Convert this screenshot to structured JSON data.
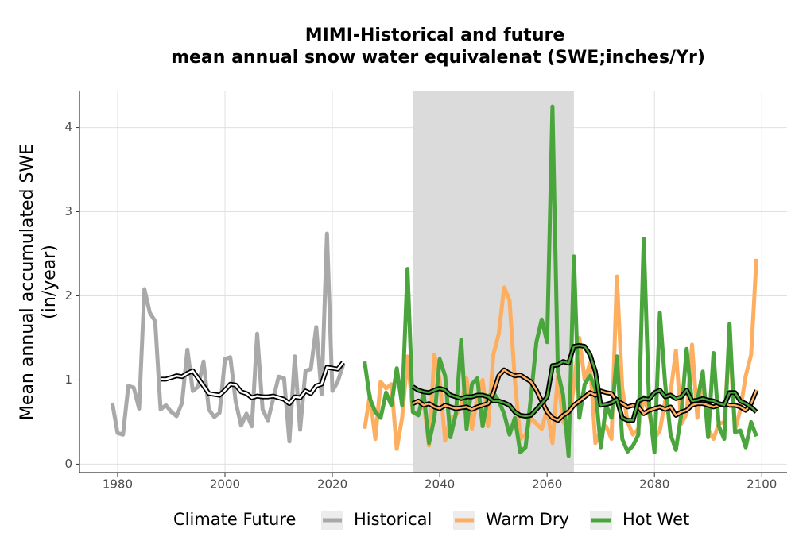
{
  "chart_data": {
    "type": "line",
    "title": [
      "MIMI-Historical and future",
      "mean annual snow water equivalenat (SWE;inches/Yr)"
    ],
    "y_label": [
      "Mean annual accumulated SWE",
      "(in/year)"
    ],
    "legend_title": "Climate Future",
    "legend": "bottom",
    "grid": true,
    "xlim": [
      1972.9,
      2104.7
    ],
    "ylim": [
      -0.1,
      4.43
    ],
    "xticks": [
      1980,
      2000,
      2020,
      2040,
      2060,
      2080,
      2100
    ],
    "yticks": [
      0,
      1,
      2,
      3,
      4
    ],
    "shade": [
      2035,
      2065
    ],
    "shade_color": "#d9d9d9",
    "trend_outline": "#000000",
    "series": [
      {
        "name": "Historical",
        "color": "#a9a9a9",
        "x": [
          1979,
          1980,
          1981,
          1982,
          1983,
          1984,
          1985,
          1986,
          1987,
          1988,
          1989,
          1990,
          1991,
          1992,
          1993,
          1994,
          1995,
          1996,
          1997,
          1998,
          1999,
          2000,
          2001,
          2002,
          2003,
          2004,
          2005,
          2006,
          2007,
          2008,
          2009,
          2010,
          2011,
          2012,
          2013,
          2014,
          2015,
          2016,
          2017,
          2018,
          2019,
          2020,
          2021,
          2022
        ],
        "values": [
          0.73,
          0.37,
          0.35,
          0.93,
          0.91,
          0.66,
          2.08,
          1.8,
          1.7,
          0.65,
          0.7,
          0.62,
          0.57,
          0.73,
          1.36,
          0.87,
          0.92,
          1.22,
          0.65,
          0.56,
          0.61,
          1.25,
          1.27,
          0.74,
          0.46,
          0.6,
          0.45,
          1.55,
          0.65,
          0.52,
          0.78,
          1.04,
          1.02,
          0.27,
          1.28,
          0.41,
          1.11,
          1.13,
          1.63,
          0.83,
          2.74,
          0.87,
          0.98,
          1.18
        ],
        "trend": {
          "color": "#ffffff",
          "x": [
            1988,
            1989,
            1990,
            1991,
            1992,
            1993,
            1994,
            1995,
            1996,
            1997,
            1998,
            1999,
            2000,
            2001,
            2002,
            2003,
            2004,
            2005,
            2006,
            2007,
            2008,
            2009,
            2010,
            2011,
            2012,
            2013,
            2014,
            2015,
            2016,
            2017,
            2018,
            2019,
            2020,
            2021,
            2022
          ],
          "values": [
            1.01,
            1.01,
            1.03,
            1.05,
            1.04,
            1.08,
            1.11,
            1.02,
            0.93,
            0.84,
            0.83,
            0.82,
            0.88,
            0.95,
            0.94,
            0.86,
            0.84,
            0.79,
            0.81,
            0.8,
            0.8,
            0.81,
            0.79,
            0.77,
            0.72,
            0.8,
            0.79,
            0.87,
            0.84,
            0.93,
            0.95,
            1.15,
            1.14,
            1.13,
            1.21
          ]
        }
      },
      {
        "name": "Warm Dry",
        "color": "#fdae61",
        "x": [
          2026,
          2027,
          2028,
          2029,
          2030,
          2031,
          2032,
          2033,
          2034,
          2035,
          2036,
          2037,
          2038,
          2039,
          2040,
          2041,
          2042,
          2043,
          2044,
          2045,
          2046,
          2047,
          2048,
          2049,
          2050,
          2051,
          2052,
          2053,
          2054,
          2055,
          2056,
          2057,
          2058,
          2059,
          2060,
          2061,
          2062,
          2063,
          2064,
          2065,
          2066,
          2067,
          2068,
          2069,
          2070,
          2071,
          2072,
          2073,
          2074,
          2075,
          2076,
          2077,
          2078,
          2079,
          2080,
          2081,
          2082,
          2083,
          2084,
          2085,
          2086,
          2087,
          2088,
          2089,
          2090,
          2091,
          2092,
          2093,
          2094,
          2095,
          2096,
          2097,
          2098,
          2099
        ],
        "values": [
          0.42,
          0.82,
          0.3,
          0.98,
          0.9,
          0.95,
          0.18,
          0.55,
          1.28,
          0.62,
          0.6,
          0.75,
          0.22,
          1.3,
          1.0,
          0.28,
          0.55,
          0.58,
          0.7,
          1.02,
          0.42,
          0.8,
          1.0,
          0.45,
          1.3,
          1.55,
          2.1,
          1.95,
          1.0,
          0.3,
          0.35,
          0.55,
          0.48,
          0.42,
          0.65,
          0.25,
          1.05,
          0.5,
          0.42,
          0.95,
          1.5,
          1.0,
          1.2,
          0.25,
          0.4,
          0.45,
          0.3,
          2.23,
          0.9,
          0.5,
          0.35,
          0.42,
          0.8,
          0.6,
          0.3,
          0.4,
          0.75,
          0.85,
          1.35,
          0.48,
          0.6,
          1.42,
          0.55,
          1.05,
          0.42,
          0.3,
          0.48,
          0.5,
          1.5,
          0.4,
          0.65,
          1.05,
          1.3,
          2.44
        ],
        "trend": {
          "color": "#fdae61",
          "x": [
            2035,
            2036,
            2037,
            2038,
            2039,
            2040,
            2041,
            2042,
            2043,
            2044,
            2045,
            2046,
            2047,
            2048,
            2049,
            2050,
            2051,
            2052,
            2053,
            2054,
            2055,
            2056,
            2057,
            2058,
            2059,
            2060,
            2061,
            2062,
            2063,
            2064,
            2065,
            2066,
            2067,
            2068,
            2069,
            2070,
            2071,
            2072,
            2073,
            2074,
            2075,
            2076,
            2077,
            2078,
            2079,
            2080,
            2081,
            2082,
            2083,
            2084,
            2085,
            2086,
            2087,
            2088,
            2089,
            2090,
            2091,
            2092,
            2093,
            2094,
            2095,
            2096,
            2097,
            2098,
            2099
          ],
          "values": [
            0.72,
            0.75,
            0.7,
            0.72,
            0.68,
            0.66,
            0.7,
            0.68,
            0.66,
            0.67,
            0.68,
            0.65,
            0.68,
            0.7,
            0.72,
            0.85,
            1.05,
            1.12,
            1.08,
            1.05,
            1.06,
            1.02,
            0.98,
            0.88,
            0.75,
            0.62,
            0.55,
            0.52,
            0.58,
            0.62,
            0.7,
            0.75,
            0.8,
            0.85,
            0.82,
            0.87,
            0.85,
            0.84,
            0.75,
            0.72,
            0.68,
            0.7,
            0.68,
            0.6,
            0.64,
            0.66,
            0.68,
            0.65,
            0.68,
            0.58,
            0.62,
            0.64,
            0.7,
            0.72,
            0.72,
            0.7,
            0.68,
            0.7,
            0.72,
            0.7,
            0.7,
            0.68,
            0.64,
            0.72,
            0.88
          ]
        }
      },
      {
        "name": "Hot Wet",
        "color": "#4aa63c",
        "x": [
          2026,
          2027,
          2028,
          2029,
          2030,
          2031,
          2032,
          2033,
          2034,
          2035,
          2036,
          2037,
          2038,
          2039,
          2040,
          2041,
          2042,
          2043,
          2044,
          2045,
          2046,
          2047,
          2048,
          2049,
          2050,
          2051,
          2052,
          2053,
          2054,
          2055,
          2056,
          2057,
          2058,
          2059,
          2060,
          2061,
          2062,
          2063,
          2064,
          2065,
          2066,
          2067,
          2068,
          2069,
          2070,
          2071,
          2072,
          2073,
          2074,
          2075,
          2076,
          2077,
          2078,
          2079,
          2080,
          2081,
          2082,
          2083,
          2084,
          2085,
          2086,
          2087,
          2088,
          2089,
          2090,
          2091,
          2092,
          2093,
          2094,
          2095,
          2096,
          2097,
          2098,
          2099
        ],
        "values": [
          1.22,
          0.78,
          0.62,
          0.55,
          0.85,
          0.7,
          1.14,
          0.7,
          2.32,
          0.62,
          0.58,
          0.85,
          0.25,
          0.55,
          1.25,
          1.05,
          0.32,
          0.6,
          1.48,
          0.42,
          0.95,
          1.02,
          0.45,
          0.8,
          0.85,
          0.75,
          0.6,
          0.35,
          0.55,
          0.14,
          0.2,
          0.8,
          1.45,
          1.72,
          1.45,
          4.25,
          1.1,
          0.82,
          0.1,
          2.47,
          0.55,
          0.95,
          1.05,
          0.9,
          0.2,
          0.7,
          0.55,
          1.28,
          0.3,
          0.15,
          0.22,
          0.35,
          2.68,
          0.7,
          0.14,
          1.8,
          0.95,
          0.35,
          0.17,
          0.6,
          1.37,
          0.72,
          0.75,
          1.1,
          0.32,
          1.32,
          0.45,
          0.3,
          1.67,
          0.38,
          0.4,
          0.2,
          0.5,
          0.33
        ],
        "trend": {
          "color": "#4aa63c",
          "x": [
            2035,
            2036,
            2037,
            2038,
            2039,
            2040,
            2041,
            2042,
            2043,
            2044,
            2045,
            2046,
            2047,
            2048,
            2049,
            2050,
            2051,
            2052,
            2053,
            2054,
            2055,
            2056,
            2057,
            2058,
            2059,
            2060,
            2061,
            2062,
            2063,
            2064,
            2065,
            2066,
            2067,
            2068,
            2069,
            2070,
            2071,
            2072,
            2073,
            2074,
            2075,
            2076,
            2077,
            2078,
            2079,
            2080,
            2081,
            2082,
            2083,
            2084,
            2085,
            2086,
            2087,
            2088,
            2089,
            2090,
            2091,
            2092,
            2093,
            2094,
            2095,
            2096,
            2097,
            2098,
            2099
          ],
          "values": [
            0.92,
            0.88,
            0.86,
            0.85,
            0.88,
            0.9,
            0.88,
            0.82,
            0.8,
            0.78,
            0.8,
            0.8,
            0.82,
            0.82,
            0.8,
            0.75,
            0.75,
            0.73,
            0.7,
            0.62,
            0.58,
            0.57,
            0.58,
            0.65,
            0.72,
            0.8,
            1.17,
            1.18,
            1.22,
            1.2,
            1.4,
            1.41,
            1.4,
            1.3,
            1.1,
            0.7,
            0.71,
            0.73,
            0.77,
            0.55,
            0.52,
            0.52,
            0.75,
            0.78,
            0.77,
            0.85,
            0.88,
            0.8,
            0.82,
            0.78,
            0.8,
            0.88,
            0.75,
            0.76,
            0.78,
            0.76,
            0.75,
            0.72,
            0.7,
            0.85,
            0.85,
            0.75,
            0.72,
            0.68,
            0.62
          ]
        }
      }
    ]
  }
}
